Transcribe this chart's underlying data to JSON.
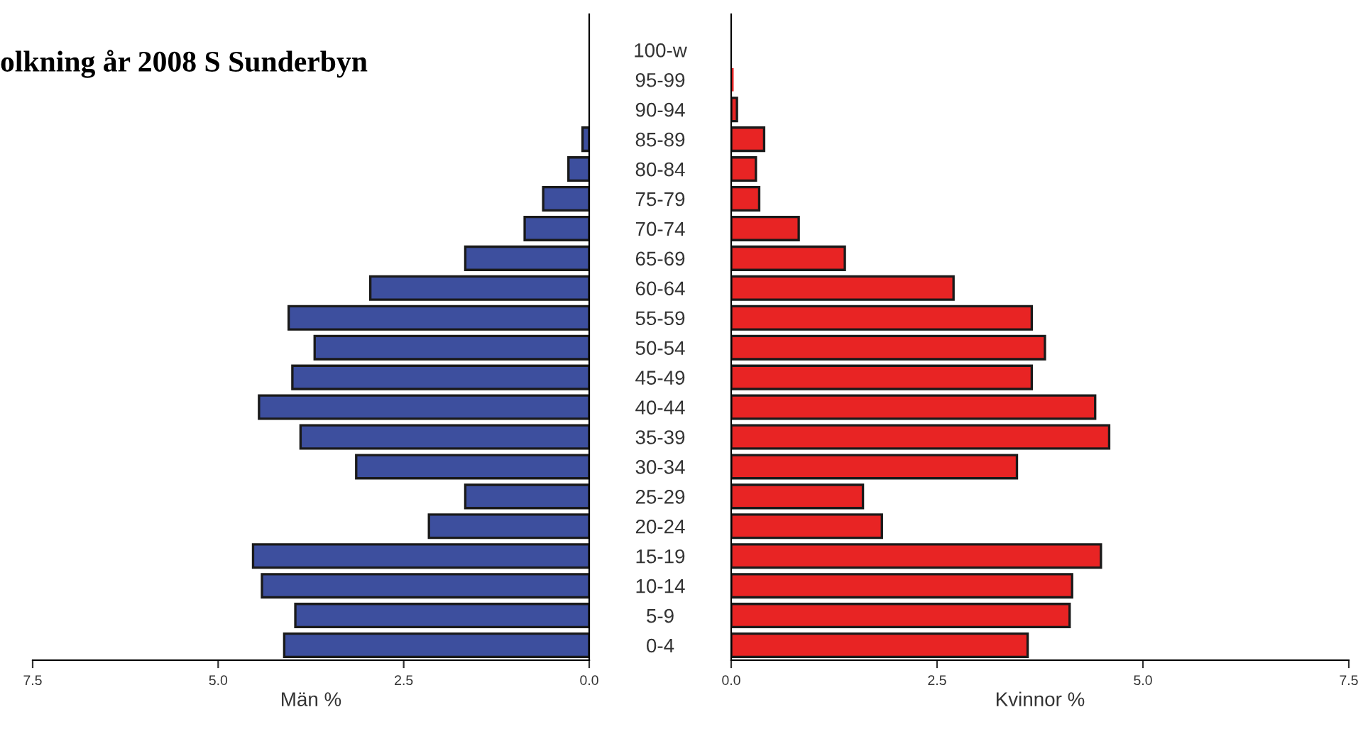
{
  "chart_data": [
    {
      "type": "bar",
      "orientation": "horizontal",
      "title": "olkning år 2008 S Sunderbyn",
      "xlabel": "Män %",
      "categories": [
        "100-w",
        "95-99",
        "90-94",
        "85-89",
        "80-84",
        "75-79",
        "70-74",
        "65-69",
        "60-64",
        "55-59",
        "50-54",
        "45-49",
        "40-44",
        "35-39",
        "30-34",
        "25-29",
        "20-24",
        "15-19",
        "10-14",
        "5-9",
        "0-4"
      ],
      "series": [
        {
          "color": "#3d4f9e",
          "values": [
            0,
            0,
            0,
            0.09,
            0.28,
            0.62,
            0.87,
            1.67,
            2.95,
            4.05,
            3.7,
            4.0,
            4.45,
            3.89,
            3.14,
            1.67,
            2.16,
            4.53,
            4.41,
            3.96,
            4.11
          ]
        }
      ],
      "xlim": [
        7.5,
        0
      ],
      "xticks": [
        {
          "value": 7.5,
          "label": "7.5"
        },
        {
          "value": 5,
          "label": "5.0"
        },
        {
          "value": 2.5,
          "label": "2.5"
        },
        {
          "value": 0,
          "label": "0.0"
        }
      ],
      "grid": false,
      "legend": false
    },
    {
      "type": "bar",
      "orientation": "horizontal",
      "xlabel": "Kvinnor %",
      "categories": [
        null,
        null,
        null,
        null,
        null,
        null,
        null,
        null,
        null,
        null,
        null,
        null,
        null,
        null,
        null,
        null,
        null,
        null,
        null,
        null,
        null
      ],
      "series": [
        {
          "color": "#e82424",
          "values": [
            0,
            0.03,
            0.07,
            0.4,
            0.3,
            0.34,
            0.82,
            1.38,
            2.7,
            3.65,
            3.81,
            3.65,
            4.42,
            4.59,
            3.47,
            1.6,
            1.83,
            4.49,
            4.14,
            4.11,
            3.6
          ]
        }
      ],
      "xlim": [
        0,
        7.5
      ],
      "xticks": [
        {
          "value": 0,
          "label": "0.0"
        },
        {
          "value": 2.5,
          "label": "2.5"
        },
        {
          "value": 5,
          "label": "5.0"
        },
        {
          "value": 7.5,
          "label": "7.5"
        }
      ],
      "tick_labels": "x",
      "grid": false,
      "legend": false
    }
  ]
}
